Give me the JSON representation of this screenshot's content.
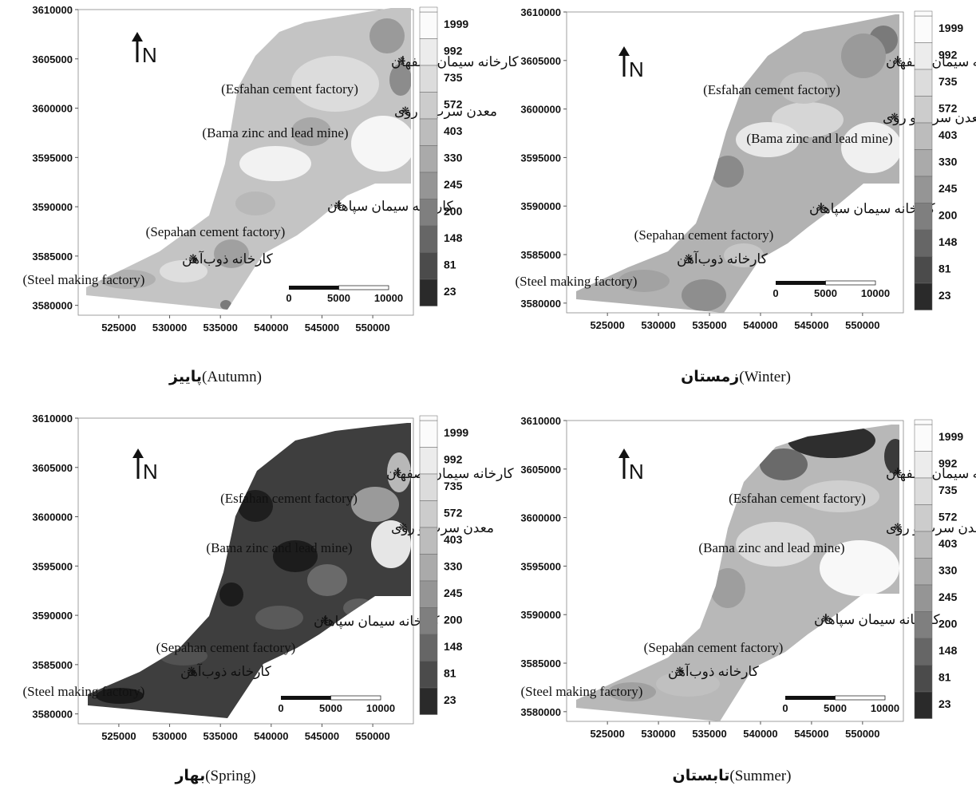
{
  "x_ticks": [
    "525000",
    "530000",
    "535000",
    "540000",
    "545000",
    "550000"
  ],
  "y_ticks": [
    "3580000",
    "3585000",
    "3590000",
    "3595000",
    "3600000",
    "3605000",
    "3610000"
  ],
  "legend": {
    "labels": [
      "1999",
      "992",
      "735",
      "572",
      "403",
      "330",
      "245",
      "200",
      "148",
      "81",
      "23"
    ],
    "colors": [
      "#fbfbfb",
      "#ececec",
      "#dcdcdc",
      "#cccccc",
      "#bcbcbc",
      "#aaaaaa",
      "#959595",
      "#7f7f7f",
      "#666666",
      "#4b4b4b",
      "#2a2a2a"
    ]
  },
  "north_label": "N",
  "scalebar": {
    "labels": [
      "0",
      "5000",
      "10000"
    ]
  },
  "sites": [
    {
      "fa": "کارخانه سیمان اصفهان",
      "en": "(Esfahan cement factory)"
    },
    {
      "fa": "معدن سرب و روی",
      "en": "(Bama zinc and lead mine)"
    },
    {
      "fa": "کارخانه سیمان سپاهان",
      "en": "(Sepahan cement  factory)"
    },
    {
      "fa": "کارخانه ذوب‌آهن",
      "en": "(Steel making factory)"
    }
  ],
  "panels": [
    {
      "id": "autumn",
      "fa": "پاییز",
      "en": "(Autumn)",
      "base": "#c4c4c4"
    },
    {
      "id": "winter",
      "fa": "زمستان",
      "en": "(Winter)",
      "base": "#b2b2b2"
    },
    {
      "id": "spring",
      "fa": "بهار",
      "en": "(Spring)",
      "base": "#3e3e3e"
    },
    {
      "id": "summer",
      "fa": "تابستان",
      "en": "(Summer)",
      "base": "#b8b8b8"
    }
  ]
}
